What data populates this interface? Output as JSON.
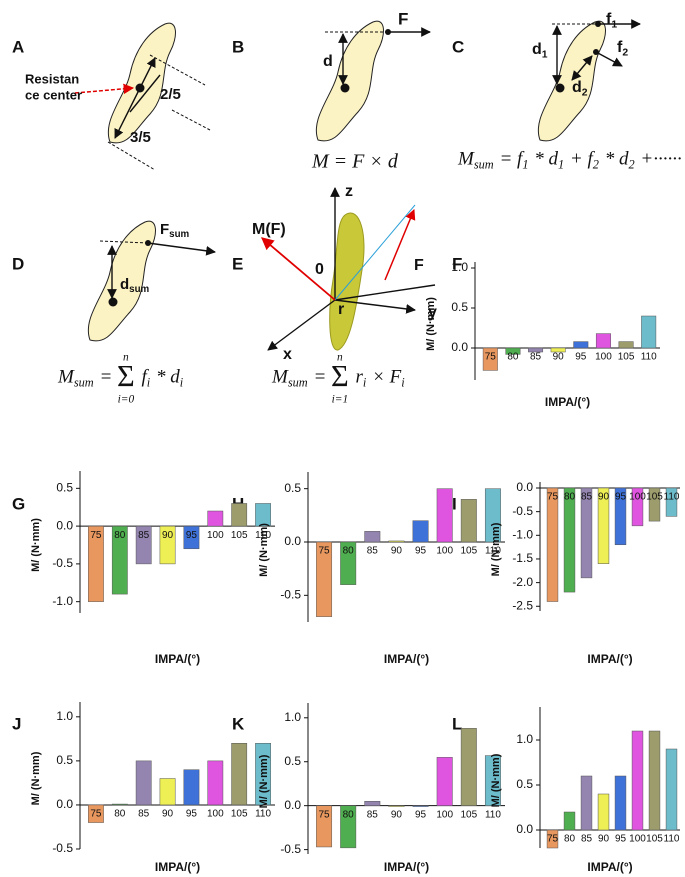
{
  "panel_labels": [
    "A",
    "B",
    "C",
    "D",
    "E",
    "F",
    "G",
    "H",
    "I",
    "J",
    "K",
    "L"
  ],
  "diagram_labels": [
    {
      "parts": [
        {
          "text": "Resistan"
        }
      ]
    },
    {
      "parts": [
        {
          "text": "ce center"
        }
      ]
    },
    {
      "parts": [
        {
          "text": "2/5"
        }
      ]
    },
    {
      "parts": [
        {
          "text": "3/5"
        }
      ]
    },
    {
      "parts": [
        {
          "text": "F"
        }
      ]
    },
    {
      "parts": [
        {
          "text": "d"
        }
      ]
    },
    {
      "parts": [
        {
          "text": "f"
        },
        {
          "sub": "1"
        }
      ]
    },
    {
      "parts": [
        {
          "text": "d"
        },
        {
          "sub": "1"
        }
      ]
    },
    {
      "parts": [
        {
          "text": "f"
        },
        {
          "sub": "2"
        }
      ]
    },
    {
      "parts": [
        {
          "text": "d"
        },
        {
          "sub": "2"
        }
      ]
    },
    {
      "parts": [
        {
          "text": "F"
        },
        {
          "sub": "sum"
        }
      ]
    },
    {
      "parts": [
        {
          "text": "d"
        },
        {
          "sub": "sum"
        }
      ]
    },
    {
      "parts": [
        {
          "text": "z"
        }
      ]
    },
    {
      "parts": [
        {
          "text": "M(F)"
        }
      ],
      "color": "#e00000"
    },
    {
      "parts": [
        {
          "text": "F"
        }
      ],
      "color": "#e00000"
    },
    {
      "parts": [
        {
          "text": "0"
        }
      ]
    },
    {
      "parts": [
        {
          "text": "r"
        }
      ]
    },
    {
      "parts": [
        {
          "text": "y"
        }
      ]
    },
    {
      "parts": [
        {
          "text": "x"
        }
      ]
    }
  ],
  "equations": [
    {
      "parts": [
        {
          "text": "M = F × d"
        }
      ]
    },
    {
      "parts": [
        {
          "text": "M"
        },
        {
          "sub": "sum"
        },
        {
          "text": " = f"
        },
        {
          "sub": "1"
        },
        {
          "text": " * d"
        },
        {
          "sub": "1"
        },
        {
          "text": " + f"
        },
        {
          "sub": "2"
        },
        {
          "text": " * d"
        },
        {
          "sub": "2"
        },
        {
          "text": " +······"
        }
      ]
    },
    {
      "parts": [
        {
          "text": "M"
        },
        {
          "sub": "sum"
        },
        {
          "text": " = "
        },
        {
          "big": "Σ",
          "upper": "n",
          "lower": "i=0"
        },
        {
          "text": " f"
        },
        {
          "sub": "i"
        },
        {
          "text": " * d"
        },
        {
          "sub": "i"
        }
      ]
    },
    {
      "parts": [
        {
          "text": "M"
        },
        {
          "sub": "sum"
        },
        {
          "text": " = "
        },
        {
          "big": "Σ",
          "upper": "n",
          "lower": "i=1"
        },
        {
          "text": " r"
        },
        {
          "sub": "i"
        },
        {
          "text": " × F"
        },
        {
          "sub": "i"
        }
      ]
    }
  ],
  "chart_data": [
    {
      "type": "bar",
      "x_label": "IMPA/(°)",
      "y_label": "M/ (N·mm)",
      "categories": [
        "75",
        "80",
        "85",
        "90",
        "95",
        "100",
        "105",
        "110"
      ],
      "values": [
        -0.28,
        -0.08,
        -0.05,
        -0.05,
        0.08,
        0.18,
        0.08,
        0.4
      ],
      "colors": [
        "#e8975e",
        "#4fae4f",
        "#9485b0",
        "#eeee55",
        "#3f72d8",
        "#e055e0",
        "#9c9c6c",
        "#6cbccc"
      ],
      "ylim": [
        -0.4,
        1.0
      ],
      "yticks": [
        {
          "value": 0,
          "label": "0.0"
        },
        0.5,
        {
          "value": 1,
          "label": "1.0"
        }
      ]
    },
    {
      "type": "bar",
      "x_label": "IMPA/(°)",
      "y_label": "M/ (N·mm)",
      "categories": [
        "75",
        "80",
        "85",
        "90",
        "95",
        "100",
        "105",
        "110"
      ],
      "values": [
        -1.0,
        -0.9,
        -0.5,
        -0.5,
        -0.3,
        0.2,
        0.3,
        0.3
      ],
      "colors": [
        "#e8975e",
        "#4fae4f",
        "#9485b0",
        "#eeee55",
        "#3f72d8",
        "#e055e0",
        "#9c9c6c",
        "#6cbccc"
      ],
      "ylim": [
        -1.15,
        0.65
      ],
      "yticks": [
        {
          "value": -1,
          "label": "-1.0"
        },
        -0.5,
        {
          "value": 0,
          "label": "0.0"
        },
        0.5
      ]
    },
    {
      "type": "bar",
      "x_label": "IMPA/(°)",
      "y_label": "M/ (N·mm)",
      "categories": [
        "75",
        "80",
        "85",
        "90",
        "95",
        "100",
        "105",
        "110"
      ],
      "values": [
        -0.7,
        -0.4,
        0.1,
        0.01,
        0.2,
        0.5,
        0.4,
        0.5
      ],
      "colors": [
        "#e8975e",
        "#4fae4f",
        "#9485b0",
        "#eeee55",
        "#3f72d8",
        "#e055e0",
        "#9c9c6c",
        "#6cbccc"
      ],
      "ylim": [
        -0.75,
        0.6
      ],
      "yticks": [
        -0.5,
        {
          "value": 0,
          "label": "0.0"
        },
        0.5
      ]
    },
    {
      "type": "bar",
      "x_label": "IMPA/(°)",
      "y_label": "M/ (N·mm)",
      "categories": [
        "75",
        "80",
        "85",
        "90",
        "95",
        "100",
        "105",
        "110"
      ],
      "values": [
        -2.4,
        -2.2,
        -1.9,
        -1.6,
        -1.2,
        -0.8,
        -0.7,
        -0.6
      ],
      "colors": [
        "#e8975e",
        "#4fae4f",
        "#9485b0",
        "#eeee55",
        "#3f72d8",
        "#e055e0",
        "#9c9c6c",
        "#6cbccc"
      ],
      "ylim": [
        -2.6,
        0
      ],
      "yticks": [
        -2.5,
        {
          "value": -2,
          "label": "-2.0"
        },
        -1.5,
        {
          "value": -1,
          "label": "-1.0"
        },
        -0.5,
        {
          "value": 0,
          "label": "0.0"
        }
      ]
    },
    {
      "type": "bar",
      "x_label": "IMPA/(°)",
      "y_label": "M/ (N·mm)",
      "categories": [
        "75",
        "80",
        "85",
        "90",
        "95",
        "100",
        "105",
        "110"
      ],
      "values": [
        -0.2,
        0.01,
        0.5,
        0.3,
        0.4,
        0.5,
        0.7,
        0.7
      ],
      "colors": [
        "#e8975e",
        "#4fae4f",
        "#9485b0",
        "#eeee55",
        "#3f72d8",
        "#e055e0",
        "#9c9c6c",
        "#6cbccc"
      ],
      "ylim": [
        -0.5,
        1.1
      ],
      "yticks": [
        -0.5,
        {
          "value": 0,
          "label": "0.0"
        },
        0.5,
        {
          "value": 1,
          "label": "1.0"
        }
      ]
    },
    {
      "type": "bar",
      "x_label": "IMPA/(°)",
      "y_label": "M/ (N·mm)",
      "categories": [
        "75",
        "80",
        "85",
        "90",
        "95",
        "100",
        "105",
        "110"
      ],
      "values": [
        -0.47,
        -0.48,
        0.05,
        -0.01,
        -0.01,
        0.55,
        0.88,
        0.57
      ],
      "colors": [
        "#e8975e",
        "#4fae4f",
        "#9485b0",
        "#eeee55",
        "#3f72d8",
        "#e055e0",
        "#9c9c6c",
        "#6cbccc"
      ],
      "ylim": [
        -0.55,
        1.1
      ],
      "yticks": [
        -0.5,
        {
          "value": 0,
          "label": "0.0"
        },
        0.5,
        {
          "value": 1,
          "label": "1.0"
        }
      ]
    },
    {
      "type": "bar",
      "x_label": "IMPA/(°)",
      "y_label": "M/ (N·mm)",
      "categories": [
        "75",
        "80",
        "85",
        "90",
        "95",
        "100",
        "105",
        "110"
      ],
      "values": [
        -0.2,
        0.2,
        0.6,
        0.4,
        0.6,
        1.1,
        1.1,
        0.9
      ],
      "colors": [
        "#e8975e",
        "#4fae4f",
        "#9485b0",
        "#eeee55",
        "#3f72d8",
        "#e055e0",
        "#9c9c6c",
        "#6cbccc"
      ],
      "ylim": [
        -0.2,
        1.3
      ],
      "yticks": [
        {
          "value": 0,
          "label": "0.0"
        },
        0.5,
        {
          "value": 1,
          "label": "1.0"
        }
      ]
    }
  ]
}
